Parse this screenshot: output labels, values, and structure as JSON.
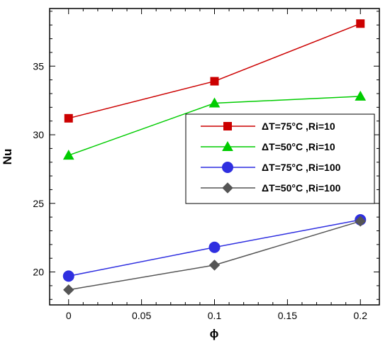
{
  "chart_data": {
    "type": "line",
    "title": "",
    "xlabel": "ϕ",
    "ylabel": "Nu",
    "xlim": [
      -0.013,
      0.213
    ],
    "ylim": [
      17.6,
      39.2
    ],
    "x": [
      0,
      0.1,
      0.2
    ],
    "xticks": [
      0,
      0.05,
      0.1,
      0.15,
      0.2
    ],
    "xtick_labels": [
      "0",
      "0.05",
      "0.1",
      "0.15",
      "0.2"
    ],
    "yticks": [
      20,
      25,
      30,
      35
    ],
    "ytick_labels": [
      "20",
      "25",
      "30",
      "35"
    ],
    "grid": false,
    "legend_position": "center-right",
    "series": [
      {
        "name": "ΔT=75°C ,Ri=10",
        "values": [
          31.2,
          33.9,
          38.1
        ],
        "color": "#cc0000",
        "marker": "square"
      },
      {
        "name": "ΔT=50°C ,Ri=10",
        "values": [
          28.5,
          32.3,
          32.8
        ],
        "color": "#00cc00",
        "marker": "triangle"
      },
      {
        "name": "ΔT=75°C ,Ri=100",
        "values": [
          19.7,
          21.8,
          23.8
        ],
        "color": "#2f2fe0",
        "marker": "circle"
      },
      {
        "name": "ΔT=50°C ,Ri=100",
        "values": [
          18.7,
          20.5,
          23.7
        ],
        "color": "#555555",
        "marker": "diamond"
      }
    ]
  }
}
